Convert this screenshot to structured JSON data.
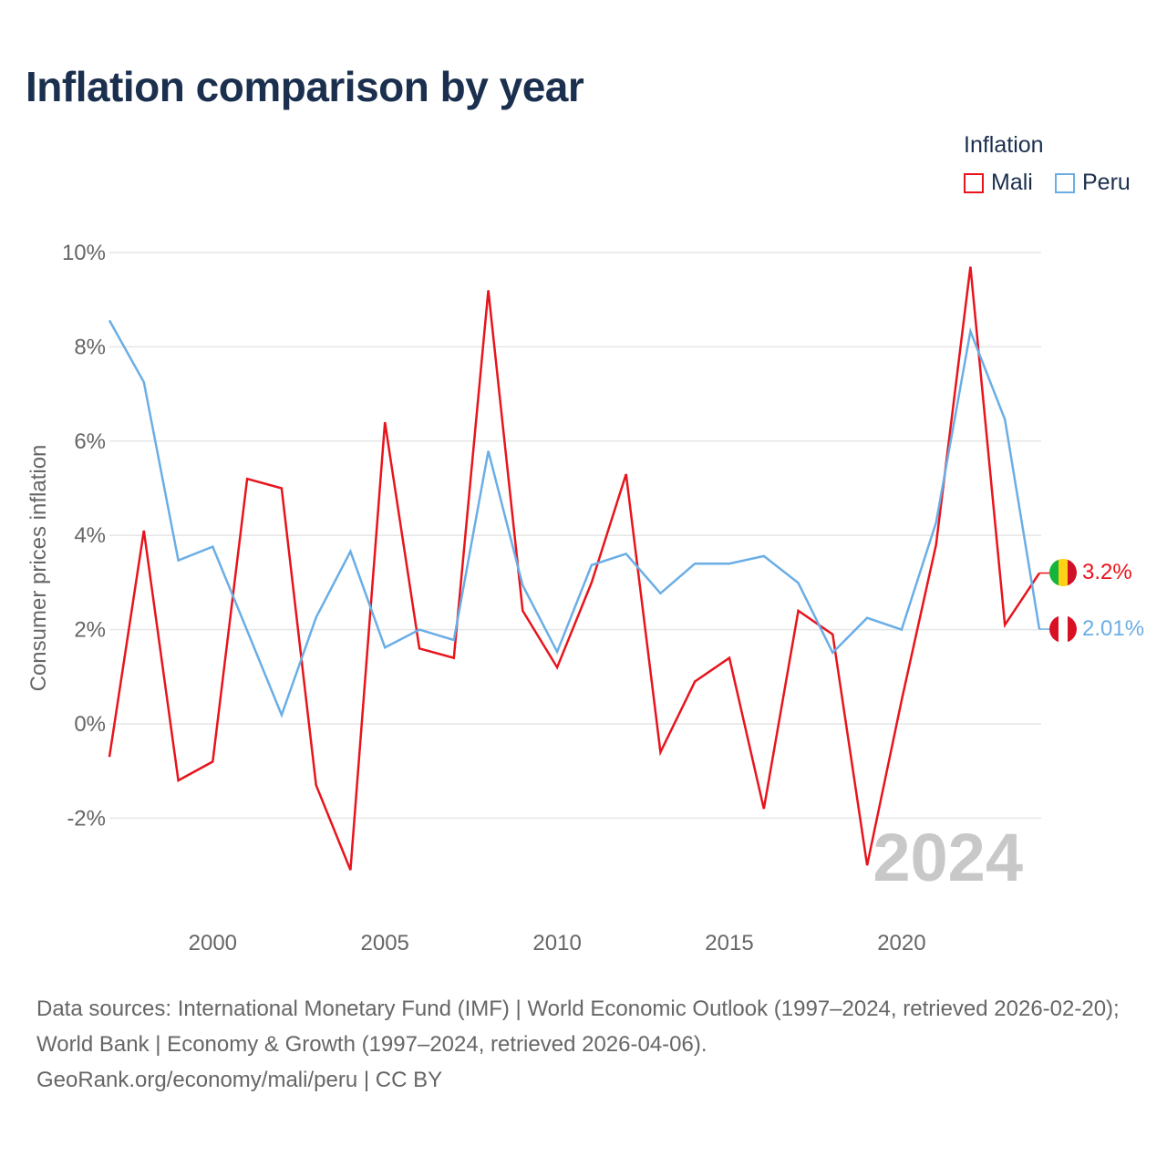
{
  "title": "Inflation comparison by year",
  "legend": {
    "title": "Inflation",
    "items": [
      {
        "label": "Mali",
        "color": "#e8141c"
      },
      {
        "label": "Peru",
        "color": "#6aaee6"
      }
    ]
  },
  "year_watermark": "2024",
  "end_labels": {
    "mali": "3.2%",
    "peru": "2.01%"
  },
  "source": {
    "line1": "Data sources: International Monetary Fund (IMF) | World Economic Outlook (1997–2024, retrieved 2026-02-20); World Bank | Economy & Growth (1997–2024, retrieved 2026-04-06).",
    "line2": "GeoRank.org/economy/mali/peru | CC BY"
  },
  "chart_data": {
    "type": "line",
    "title": "Inflation comparison by year",
    "xlabel": "",
    "ylabel": "Consumer prices inflation",
    "x": [
      1997,
      1998,
      1999,
      2000,
      2001,
      2002,
      2003,
      2004,
      2005,
      2006,
      2007,
      2008,
      2009,
      2010,
      2011,
      2012,
      2013,
      2014,
      2015,
      2016,
      2017,
      2018,
      2019,
      2020,
      2021,
      2022,
      2023,
      2024
    ],
    "xlim": [
      1997,
      2024
    ],
    "ylim": [
      -4,
      10
    ],
    "xticks": [
      2000,
      2005,
      2010,
      2015,
      2020
    ],
    "yticks": [
      -2,
      0,
      2,
      4,
      6,
      8,
      10
    ],
    "ytick_labels": [
      "-2%",
      "0%",
      "2%",
      "4%",
      "6%",
      "8%",
      "10%"
    ],
    "xtick_labels": [
      "2000",
      "2005",
      "2010",
      "2015",
      "2020"
    ],
    "series": [
      {
        "name": "Mali",
        "color": "#e8141c",
        "values": [
          -0.7,
          4.1,
          -1.2,
          -0.8,
          5.2,
          5.0,
          -1.3,
          -3.1,
          6.4,
          1.6,
          1.4,
          9.2,
          2.4,
          1.2,
          3.0,
          5.3,
          -0.6,
          0.9,
          1.4,
          -1.8,
          2.4,
          1.9,
          -3.0,
          0.5,
          3.8,
          9.7,
          2.1,
          3.2
        ]
      },
      {
        "name": "Peru",
        "color": "#6aaee6",
        "values": [
          8.56,
          7.25,
          3.47,
          3.76,
          1.98,
          0.19,
          2.26,
          3.66,
          1.62,
          2.0,
          1.78,
          5.79,
          2.94,
          1.53,
          3.37,
          3.61,
          2.77,
          3.4,
          3.4,
          3.56,
          2.99,
          1.51,
          2.25,
          2.0,
          4.27,
          8.33,
          6.46,
          2.01
        ]
      }
    ],
    "grid": true,
    "legend": "top-right"
  }
}
